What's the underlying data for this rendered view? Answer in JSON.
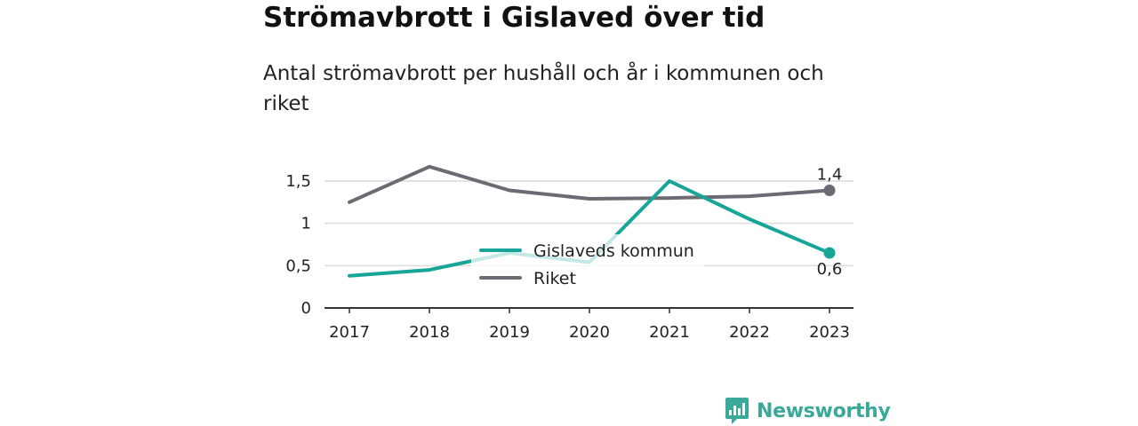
{
  "title": "Strömavbrott i Gislaved över tid",
  "subtitle": "Antal strömavbrott per hushåll och år i kommunen och riket",
  "brand": {
    "name": "Newsworthy",
    "logo_icon": "bar-chart-speech-bubble-icon",
    "color": "#3aa99a"
  },
  "chart_data": {
    "type": "line",
    "x": [
      "2017",
      "2018",
      "2019",
      "2020",
      "2021",
      "2022",
      "2023"
    ],
    "yticks": [
      "0",
      "0,5",
      "1",
      "1,5"
    ],
    "ylim": [
      0,
      1.5
    ],
    "grid": true,
    "legend_position": "center",
    "series": [
      {
        "name": "Gislaveds kommun",
        "color": "#16a596",
        "values": [
          0.38,
          0.45,
          0.65,
          0.54,
          1.5,
          1.05,
          0.65
        ],
        "end_label": "0,6"
      },
      {
        "name": "Riket",
        "color": "#6c6b74",
        "values": [
          1.25,
          1.67,
          1.39,
          1.29,
          1.3,
          1.32,
          1.39
        ],
        "end_label": "1,4"
      }
    ]
  }
}
